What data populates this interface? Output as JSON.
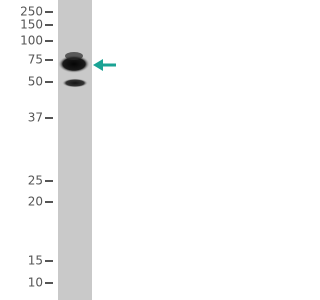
{
  "blot": {
    "markers": [
      250,
      150,
      100,
      75,
      50,
      37,
      25,
      20,
      15,
      10
    ]
  }
}
